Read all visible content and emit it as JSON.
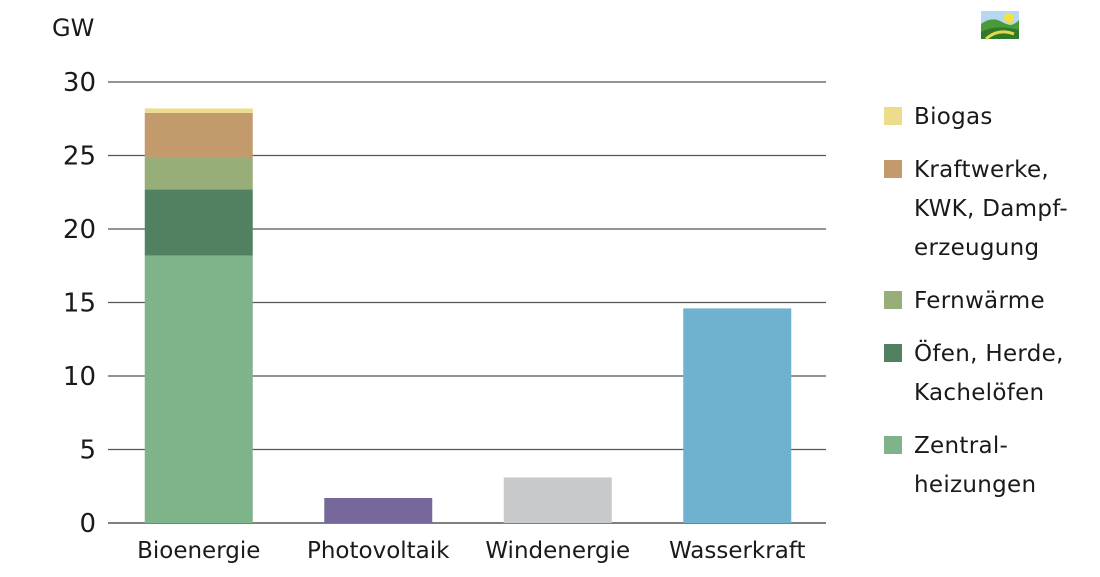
{
  "chart_data": {
    "type": "bar",
    "stacked": true,
    "title": "",
    "ylabel": "GW",
    "xlabel": "",
    "ylim": [
      0,
      30
    ],
    "yticks": [
      0,
      5,
      10,
      15,
      20,
      25,
      30
    ],
    "grid": true,
    "legend_position": "right",
    "categories": [
      "Bioenergie",
      "Photovoltaik",
      "Windenergie",
      "Wasserkraft"
    ],
    "series": [
      {
        "name": "Zentral-\nheizungen",
        "color": "#7fb38a",
        "values": [
          18.2,
          0,
          0,
          0
        ]
      },
      {
        "name": "Öfen, Herde,\nKachelöfen",
        "color": "#528162",
        "values": [
          4.5,
          0,
          0,
          0
        ]
      },
      {
        "name": "Fernwärme",
        "color": "#97ae78",
        "values": [
          2.2,
          0,
          0,
          0
        ]
      },
      {
        "name": "Kraftwerke,\nKWK, Dampf-\nerzeugung",
        "color": "#c39a6b",
        "values": [
          3.0,
          0,
          0,
          0
        ]
      },
      {
        "name": "Biogas",
        "color": "#ecdc8c",
        "values": [
          0.3,
          0,
          0,
          0
        ]
      },
      {
        "name": "",
        "color": "#76689a",
        "values": [
          0,
          1.7,
          0,
          0
        ]
      },
      {
        "name": "",
        "color": "#c8c9cb",
        "values": [
          0,
          0,
          3.1,
          0
        ]
      },
      {
        "name": "",
        "color": "#6fb2d0",
        "values": [
          0,
          0,
          0,
          14.6
        ]
      }
    ],
    "legend_order": [
      "Biogas",
      "Kraftwerke,\nKWK, Dampf-\nerzeugung",
      "Fernwärme",
      "Öfen, Herde,\nKachelöfen",
      "Zentral-\nheizungen"
    ]
  },
  "logo": {
    "icon": "landscape-logo-icon"
  }
}
